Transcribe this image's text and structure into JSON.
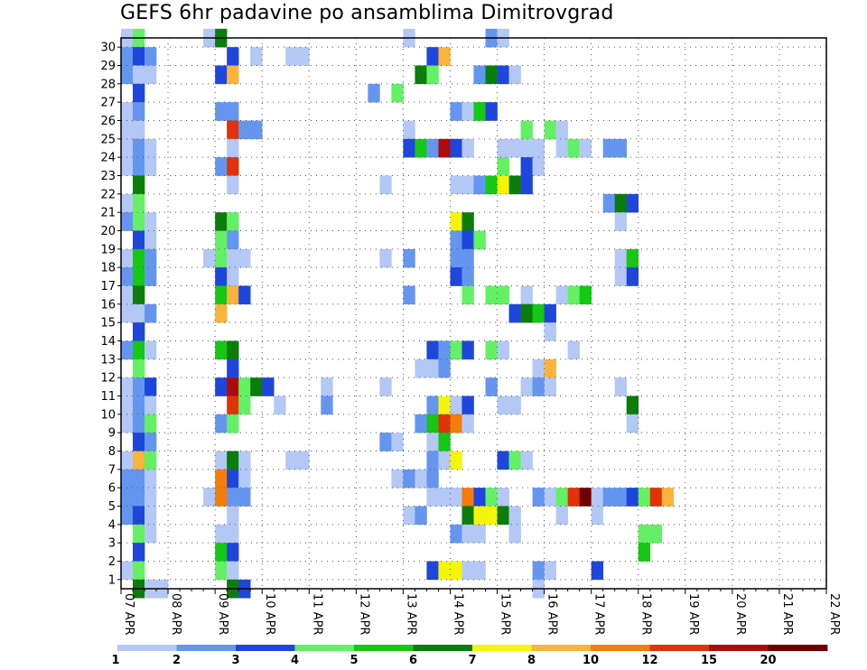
{
  "chart_data": {
    "type": "heatmap",
    "title": "GEFS 6hr padavine po ansamblima Dimitrovgrad",
    "x_tick_labels": [
      "07 APR",
      "08 APR",
      "09 APR",
      "10 APR",
      "11 APR",
      "12 APR",
      "13 APR",
      "14 APR",
      "15 APR",
      "16 APR",
      "17 APR",
      "18 APR",
      "19 APR",
      "20 APR",
      "21 APR",
      "22 APR"
    ],
    "y_tick_labels": [
      "1",
      "2",
      "3",
      "4",
      "5",
      "6",
      "7",
      "8",
      "9",
      "10",
      "11",
      "12",
      "13",
      "14",
      "15",
      "16",
      "17",
      "18",
      "19",
      "20",
      "21",
      "22",
      "23",
      "24",
      "25",
      "26",
      "27",
      "28",
      "29",
      "30"
    ],
    "xlim": [
      "07 APR",
      "22 APR"
    ],
    "ylim": [
      0,
      30
    ],
    "grid": true,
    "colorbar": {
      "levels": [
        "1",
        "2",
        "3",
        "4",
        "5",
        "6",
        "7",
        "8",
        "10",
        "12",
        "15",
        "20"
      ],
      "colors": [
        "#b4c8f5",
        "#6496f0",
        "#1e46dc",
        "#64f064",
        "#14c814",
        "#0a7d0a",
        "#f5f50a",
        "#fab43c",
        "#f57d0a",
        "#e1320a",
        "#af0a0a",
        "#6e0000"
      ]
    },
    "cells_legend": "each row is [member, step_index(0=07 APR 00Z, 6h steps), color_index(0-11)]",
    "cells": [
      [
        30,
        0,
        0
      ],
      [
        30,
        1,
        3
      ],
      [
        30,
        7,
        0
      ],
      [
        30,
        8,
        5
      ],
      [
        30,
        24,
        0
      ],
      [
        30,
        31,
        1
      ],
      [
        30,
        32,
        0
      ],
      [
        29,
        0,
        1
      ],
      [
        29,
        1,
        2
      ],
      [
        29,
        2,
        1
      ],
      [
        29,
        9,
        2
      ],
      [
        29,
        11,
        0
      ],
      [
        29,
        14,
        0
      ],
      [
        29,
        15,
        0
      ],
      [
        29,
        26,
        2
      ],
      [
        29,
        27,
        7
      ],
      [
        28,
        0,
        1
      ],
      [
        28,
        1,
        0
      ],
      [
        28,
        2,
        0
      ],
      [
        28,
        8,
        2
      ],
      [
        28,
        9,
        7
      ],
      [
        28,
        25,
        5
      ],
      [
        28,
        26,
        3
      ],
      [
        28,
        30,
        1
      ],
      [
        28,
        31,
        5
      ],
      [
        28,
        32,
        2
      ],
      [
        28,
        33,
        0
      ],
      [
        27,
        1,
        2
      ],
      [
        27,
        21,
        1
      ],
      [
        27,
        23,
        3
      ],
      [
        26,
        0,
        0
      ],
      [
        26,
        1,
        1
      ],
      [
        26,
        8,
        1
      ],
      [
        26,
        9,
        1
      ],
      [
        26,
        28,
        1
      ],
      [
        26,
        29,
        0
      ],
      [
        26,
        30,
        4
      ],
      [
        26,
        31,
        2
      ],
      [
        25,
        0,
        0
      ],
      [
        25,
        1,
        0
      ],
      [
        25,
        9,
        9
      ],
      [
        25,
        10,
        1
      ],
      [
        25,
        11,
        1
      ],
      [
        25,
        24,
        0
      ],
      [
        25,
        34,
        3
      ],
      [
        25,
        36,
        3
      ],
      [
        25,
        37,
        0
      ],
      [
        24,
        0,
        0
      ],
      [
        24,
        1,
        1
      ],
      [
        24,
        2,
        0
      ],
      [
        24,
        9,
        0
      ],
      [
        24,
        24,
        2
      ],
      [
        24,
        25,
        4
      ],
      [
        24,
        26,
        1
      ],
      [
        24,
        27,
        10
      ],
      [
        24,
        28,
        2
      ],
      [
        24,
        29,
        0
      ],
      [
        24,
        32,
        0
      ],
      [
        24,
        33,
        0
      ],
      [
        24,
        34,
        0
      ],
      [
        24,
        35,
        0
      ],
      [
        24,
        37,
        0
      ],
      [
        24,
        38,
        3
      ],
      [
        24,
        39,
        0
      ],
      [
        24,
        41,
        1
      ],
      [
        24,
        42,
        1
      ],
      [
        23,
        0,
        0
      ],
      [
        23,
        1,
        1
      ],
      [
        23,
        2,
        0
      ],
      [
        23,
        8,
        1
      ],
      [
        23,
        9,
        9
      ],
      [
        23,
        32,
        3
      ],
      [
        23,
        34,
        2
      ],
      [
        23,
        35,
        0
      ],
      [
        22,
        1,
        5
      ],
      [
        22,
        9,
        0
      ],
      [
        22,
        22,
        0
      ],
      [
        22,
        28,
        0
      ],
      [
        22,
        29,
        0
      ],
      [
        22,
        30,
        1
      ],
      [
        22,
        31,
        4
      ],
      [
        22,
        32,
        6
      ],
      [
        22,
        33,
        5
      ],
      [
        22,
        34,
        2
      ],
      [
        21,
        0,
        0
      ],
      [
        21,
        1,
        3
      ],
      [
        21,
        41,
        1
      ],
      [
        21,
        42,
        5
      ],
      [
        21,
        43,
        2
      ],
      [
        20,
        0,
        1
      ],
      [
        20,
        1,
        3
      ],
      [
        20,
        2,
        0
      ],
      [
        20,
        8,
        5
      ],
      [
        20,
        9,
        3
      ],
      [
        20,
        28,
        6
      ],
      [
        20,
        29,
        5
      ],
      [
        20,
        42,
        0
      ],
      [
        19,
        1,
        2
      ],
      [
        19,
        2,
        0
      ],
      [
        19,
        8,
        3
      ],
      [
        19,
        9,
        1
      ],
      [
        19,
        28,
        1
      ],
      [
        19,
        29,
        2
      ],
      [
        19,
        30,
        3
      ],
      [
        18,
        0,
        0
      ],
      [
        18,
        1,
        4
      ],
      [
        18,
        2,
        1
      ],
      [
        18,
        7,
        0
      ],
      [
        18,
        8,
        3
      ],
      [
        18,
        9,
        0
      ],
      [
        18,
        10,
        0
      ],
      [
        18,
        22,
        0
      ],
      [
        18,
        24,
        1
      ],
      [
        18,
        28,
        1
      ],
      [
        18,
        29,
        1
      ],
      [
        18,
        42,
        0
      ],
      [
        18,
        43,
        4
      ],
      [
        17,
        0,
        1
      ],
      [
        17,
        1,
        4
      ],
      [
        17,
        2,
        1
      ],
      [
        17,
        8,
        2
      ],
      [
        17,
        9,
        0
      ],
      [
        17,
        28,
        2
      ],
      [
        17,
        29,
        1
      ],
      [
        17,
        42,
        0
      ],
      [
        17,
        43,
        2
      ],
      [
        16,
        0,
        0
      ],
      [
        16,
        1,
        5
      ],
      [
        16,
        8,
        4
      ],
      [
        16,
        9,
        7
      ],
      [
        16,
        10,
        2
      ],
      [
        16,
        24,
        1
      ],
      [
        16,
        29,
        3
      ],
      [
        16,
        31,
        3
      ],
      [
        16,
        32,
        3
      ],
      [
        16,
        34,
        0
      ],
      [
        16,
        37,
        0
      ],
      [
        16,
        38,
        3
      ],
      [
        16,
        39,
        4
      ],
      [
        15,
        0,
        0
      ],
      [
        15,
        1,
        0
      ],
      [
        15,
        2,
        1
      ],
      [
        15,
        8,
        7
      ],
      [
        15,
        33,
        2
      ],
      [
        15,
        34,
        5
      ],
      [
        15,
        35,
        4
      ],
      [
        15,
        36,
        2
      ],
      [
        14,
        1,
        2
      ],
      [
        14,
        36,
        0
      ],
      [
        13,
        0,
        1
      ],
      [
        13,
        1,
        4
      ],
      [
        13,
        2,
        0
      ],
      [
        13,
        8,
        4
      ],
      [
        13,
        9,
        5
      ],
      [
        13,
        26,
        2
      ],
      [
        13,
        27,
        1
      ],
      [
        13,
        28,
        3
      ],
      [
        13,
        29,
        2
      ],
      [
        13,
        31,
        3
      ],
      [
        13,
        32,
        0
      ],
      [
        13,
        38,
        0
      ],
      [
        12,
        1,
        3
      ],
      [
        12,
        9,
        2
      ],
      [
        12,
        25,
        0
      ],
      [
        12,
        26,
        0
      ],
      [
        12,
        27,
        1
      ],
      [
        12,
        35,
        0
      ],
      [
        12,
        36,
        7
      ],
      [
        11,
        0,
        0
      ],
      [
        11,
        1,
        1
      ],
      [
        11,
        2,
        2
      ],
      [
        11,
        8,
        2
      ],
      [
        11,
        9,
        10
      ],
      [
        11,
        10,
        3
      ],
      [
        11,
        11,
        5
      ],
      [
        11,
        12,
        2
      ],
      [
        11,
        17,
        0
      ],
      [
        11,
        22,
        0
      ],
      [
        11,
        31,
        1
      ],
      [
        11,
        34,
        0
      ],
      [
        11,
        35,
        1
      ],
      [
        11,
        36,
        0
      ],
      [
        11,
        42,
        0
      ],
      [
        10,
        0,
        0
      ],
      [
        10,
        1,
        1
      ],
      [
        10,
        2,
        0
      ],
      [
        10,
        9,
        9
      ],
      [
        10,
        10,
        3
      ],
      [
        10,
        13,
        0
      ],
      [
        10,
        17,
        1
      ],
      [
        10,
        26,
        1
      ],
      [
        10,
        27,
        6
      ],
      [
        10,
        28,
        0
      ],
      [
        10,
        29,
        2
      ],
      [
        10,
        32,
        0
      ],
      [
        10,
        33,
        0
      ],
      [
        10,
        43,
        5
      ],
      [
        9,
        0,
        0
      ],
      [
        9,
        1,
        1
      ],
      [
        9,
        2,
        3
      ],
      [
        9,
        8,
        1
      ],
      [
        9,
        9,
        3
      ],
      [
        9,
        25,
        1
      ],
      [
        9,
        26,
        4
      ],
      [
        9,
        27,
        9
      ],
      [
        9,
        28,
        8
      ],
      [
        9,
        29,
        0
      ],
      [
        9,
        43,
        0
      ],
      [
        8,
        1,
        2
      ],
      [
        8,
        2,
        1
      ],
      [
        8,
        22,
        1
      ],
      [
        8,
        23,
        0
      ],
      [
        8,
        26,
        0
      ],
      [
        8,
        27,
        4
      ],
      [
        7,
        0,
        0
      ],
      [
        7,
        1,
        7
      ],
      [
        7,
        2,
        3
      ],
      [
        7,
        8,
        0
      ],
      [
        7,
        9,
        5
      ],
      [
        7,
        10,
        0
      ],
      [
        7,
        14,
        0
      ],
      [
        7,
        15,
        0
      ],
      [
        7,
        26,
        1
      ],
      [
        7,
        27,
        0
      ],
      [
        7,
        28,
        6
      ],
      [
        7,
        32,
        2
      ],
      [
        7,
        33,
        3
      ],
      [
        7,
        34,
        0
      ],
      [
        6,
        0,
        1
      ],
      [
        6,
        1,
        1
      ],
      [
        6,
        2,
        0
      ],
      [
        6,
        8,
        8
      ],
      [
        6,
        9,
        2
      ],
      [
        6,
        10,
        0
      ],
      [
        6,
        23,
        0
      ],
      [
        6,
        24,
        1
      ],
      [
        6,
        25,
        0
      ],
      [
        6,
        26,
        1
      ],
      [
        5,
        0,
        1
      ],
      [
        5,
        1,
        1
      ],
      [
        5,
        2,
        0
      ],
      [
        5,
        7,
        0
      ],
      [
        5,
        8,
        8
      ],
      [
        5,
        9,
        1
      ],
      [
        5,
        10,
        1
      ],
      [
        5,
        26,
        0
      ],
      [
        5,
        27,
        0
      ],
      [
        5,
        28,
        0
      ],
      [
        5,
        29,
        8
      ],
      [
        5,
        30,
        2
      ],
      [
        5,
        31,
        3
      ],
      [
        5,
        32,
        0
      ],
      [
        5,
        35,
        1
      ],
      [
        5,
        36,
        0
      ],
      [
        5,
        37,
        3
      ],
      [
        5,
        38,
        9
      ],
      [
        5,
        39,
        11
      ],
      [
        5,
        40,
        0
      ],
      [
        5,
        41,
        1
      ],
      [
        5,
        42,
        1
      ],
      [
        5,
        43,
        2
      ],
      [
        5,
        44,
        3
      ],
      [
        5,
        45,
        9
      ],
      [
        5,
        46,
        7
      ],
      [
        4,
        0,
        1
      ],
      [
        4,
        1,
        2
      ],
      [
        4,
        2,
        0
      ],
      [
        4,
        9,
        0
      ],
      [
        4,
        24,
        0
      ],
      [
        4,
        25,
        1
      ],
      [
        4,
        29,
        5
      ],
      [
        4,
        30,
        6
      ],
      [
        4,
        31,
        6
      ],
      [
        4,
        32,
        5
      ],
      [
        4,
        33,
        0
      ],
      [
        4,
        37,
        0
      ],
      [
        4,
        40,
        0
      ],
      [
        3,
        1,
        3
      ],
      [
        3,
        2,
        0
      ],
      [
        3,
        9,
        0
      ],
      [
        3,
        8,
        0
      ],
      [
        3,
        28,
        1
      ],
      [
        3,
        29,
        0
      ],
      [
        3,
        30,
        0
      ],
      [
        3,
        33,
        0
      ],
      [
        3,
        44,
        3
      ],
      [
        3,
        45,
        3
      ],
      [
        2,
        1,
        2
      ],
      [
        2,
        8,
        4
      ],
      [
        2,
        9,
        2
      ],
      [
        2,
        44,
        4
      ],
      [
        1,
        0,
        0
      ],
      [
        1,
        1,
        3
      ],
      [
        1,
        8,
        3
      ],
      [
        1,
        9,
        0
      ],
      [
        1,
        26,
        2
      ],
      [
        1,
        27,
        6
      ],
      [
        1,
        28,
        6
      ],
      [
        1,
        29,
        0
      ],
      [
        1,
        30,
        0
      ],
      [
        1,
        35,
        1
      ],
      [
        1,
        36,
        0
      ],
      [
        1,
        40,
        2
      ],
      [
        0,
        1,
        5
      ],
      [
        0,
        2,
        0
      ],
      [
        0,
        3,
        0
      ],
      [
        0,
        9,
        5
      ],
      [
        0,
        10,
        2
      ],
      [
        0,
        35,
        0
      ]
    ]
  }
}
